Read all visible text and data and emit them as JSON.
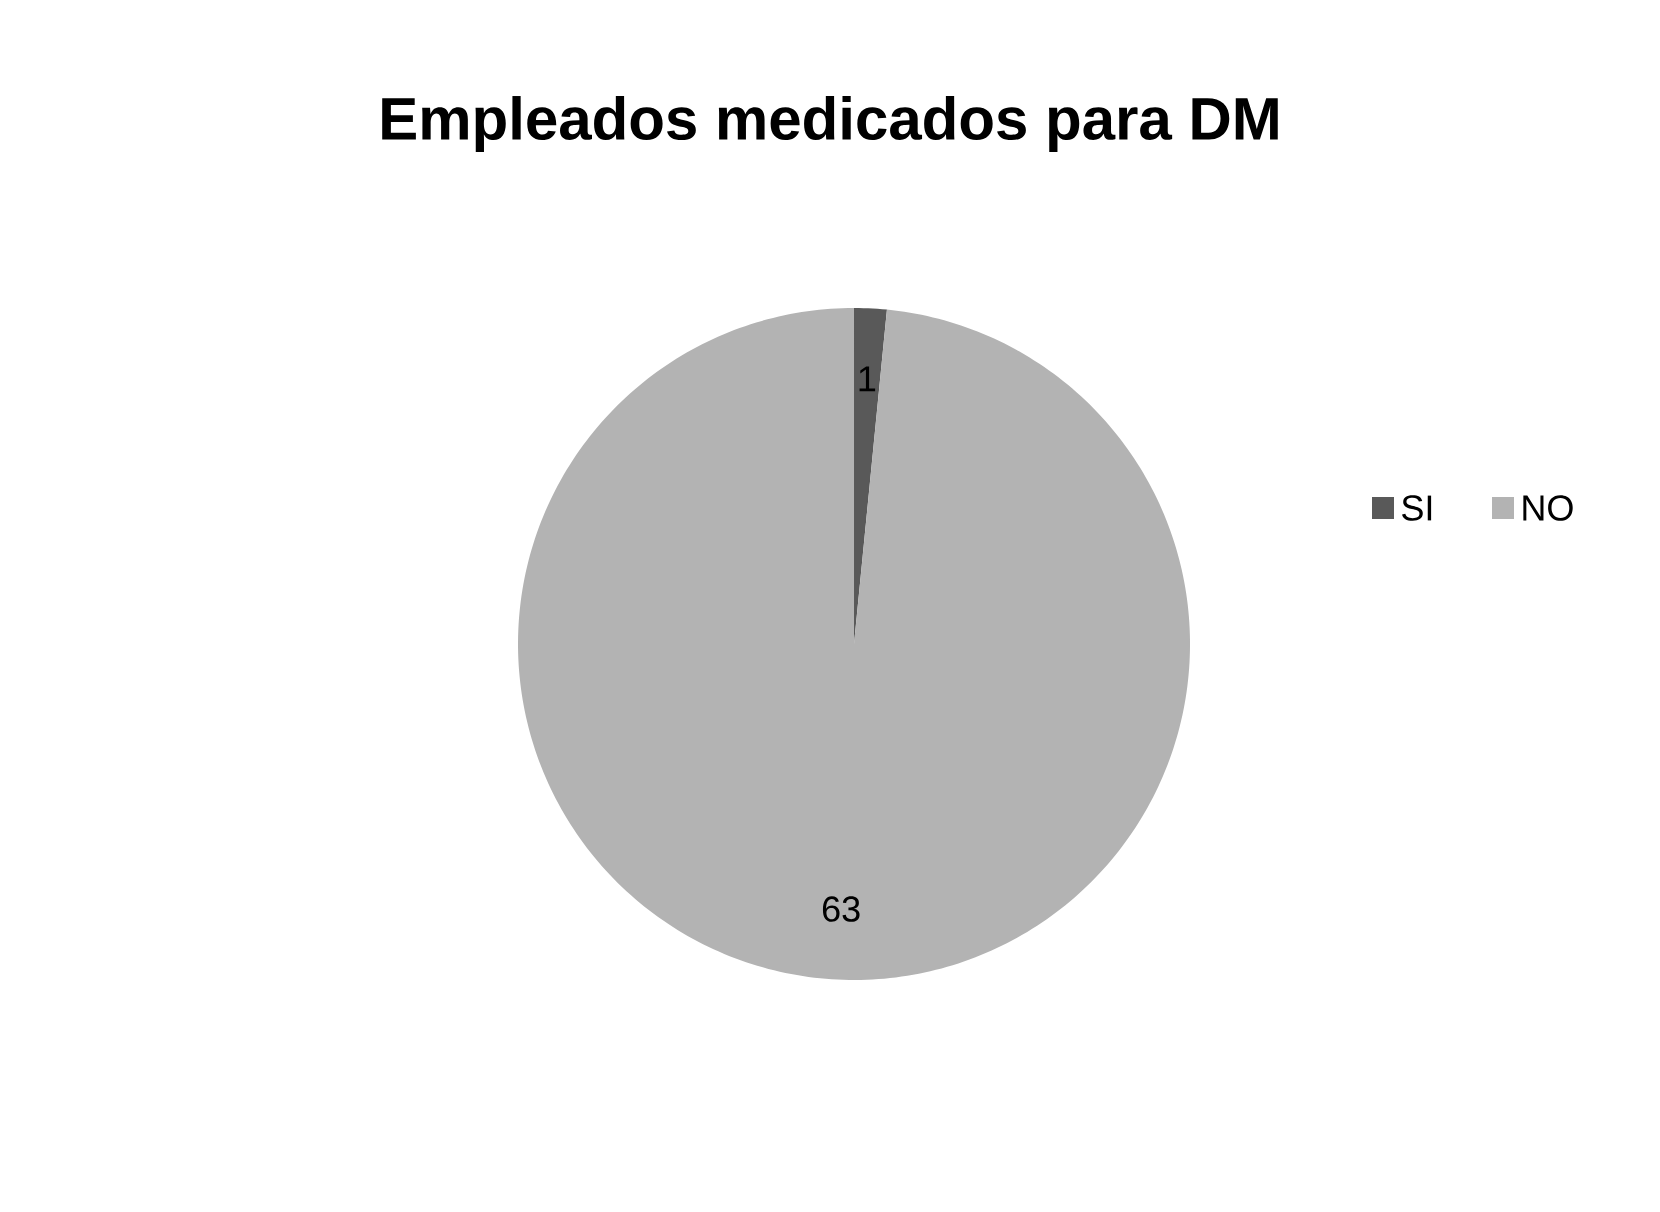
{
  "chart_data": {
    "type": "pie",
    "title": "Empleados medicados para DM",
    "categories": [
      "SI",
      "NO"
    ],
    "values": [
      1,
      63
    ],
    "colors": [
      "#595959",
      "#b3b3b3"
    ],
    "data_labels": true,
    "legend": "right"
  }
}
